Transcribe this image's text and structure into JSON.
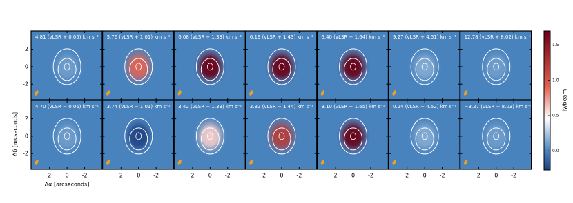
{
  "chart_data": {
    "type": "channel-maps",
    "xlabel": "Δα [arcseconds]",
    "ylabel": "Δδ [arcseconds]",
    "xlim": [
      4.1,
      -4.0
    ],
    "ylim": [
      -3.8,
      4.1
    ],
    "xticks": [
      2,
      0,
      -2
    ],
    "yticks": [
      2,
      0,
      -2
    ],
    "colorbar": {
      "label": "Jy/beam",
      "zlim": [
        -0.27,
        1.7
      ],
      "ticks": [
        {
          "value": 0,
          "label": "0.0"
        },
        0.5,
        {
          "value": 1,
          "label": "1.0"
        },
        1.5
      ]
    },
    "panels": [
      {
        "label": "4.81 (vLSR + 0.05) km s⁻¹",
        "peak": 0.1
      },
      {
        "label": "5.76 (vLSR + 1.01) km s⁻¹",
        "peak": 0.9
      },
      {
        "label": "6.08 (vLSR + 1.33) km s⁻¹",
        "peak": 1.7
      },
      {
        "label": "6.19 (vLSR + 1.43) km s⁻¹",
        "peak": 1.7
      },
      {
        "label": "6.40 (vLSR + 1.64) km s⁻¹",
        "peak": 1.7
      },
      {
        "label": "9.27 (vLSR + 4.51) km s⁻¹",
        "peak": 0.15
      },
      {
        "label": "12.78 (vLSR + 8.02) km s⁻¹",
        "peak": 0.1
      },
      {
        "label": "4.70 (vLSR − 0.06) km s⁻¹",
        "peak": 0.1
      },
      {
        "label": "3.74 (vLSR − 1.01) km s⁻¹",
        "peak": -0.25
      },
      {
        "label": "3.42 (vLSR − 1.33) km s⁻¹",
        "peak": 0.6
      },
      {
        "label": "3.32 (vLSR − 1.44) km s⁻¹",
        "peak": 1.2
      },
      {
        "label": "3.10 (vLSR − 1.65) km s⁻¹",
        "peak": 1.7
      },
      {
        "label": "0.24 (vLSR − 4.52) km s⁻¹",
        "peak": 0.15
      },
      {
        "label": "−3.27 (vLSR − 8.03) km s⁻¹",
        "peak": 0.1
      }
    ]
  }
}
